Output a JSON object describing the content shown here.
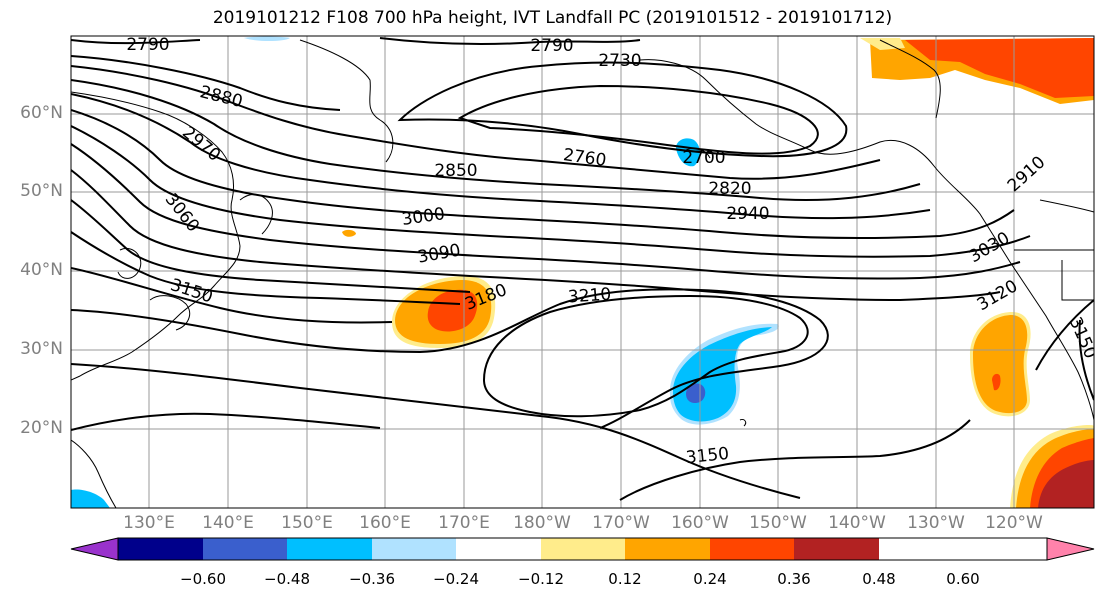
{
  "title": "2019101212 F108 700 hPa height, IVT Landfall PC (2019101512 - 2019101712)",
  "lat_labels": [
    "60°N",
    "50°N",
    "40°N",
    "30°N",
    "20°N"
  ],
  "lon_labels": [
    "130°E",
    "140°E",
    "150°E",
    "160°E",
    "170°E",
    "180°W",
    "170°W",
    "160°W",
    "150°W",
    "140°W",
    "130°W",
    "120°W"
  ],
  "contour_labels": [
    "2790",
    "2790",
    "2730",
    "2880",
    "2970",
    "2760",
    "2700",
    "2850",
    "2820",
    "3000",
    "2940",
    "2910",
    "3060",
    "3090",
    "3030",
    "3150",
    "3180",
    "3210",
    "3120",
    "3150",
    "3150"
  ],
  "colorbar": {
    "ticks": [
      "−0.60",
      "−0.48",
      "−0.36",
      "−0.24",
      "−0.12",
      "0.12",
      "0.24",
      "0.36",
      "0.48",
      "0.60"
    ],
    "colors": [
      "#9932cc",
      "#00008b",
      "#3a5fcd",
      "#00bfff",
      "#b0e2ff",
      "#ffffff",
      "#ffec8b",
      "#ffa500",
      "#ff4500",
      "#b22222",
      "#ff82ab"
    ]
  }
}
